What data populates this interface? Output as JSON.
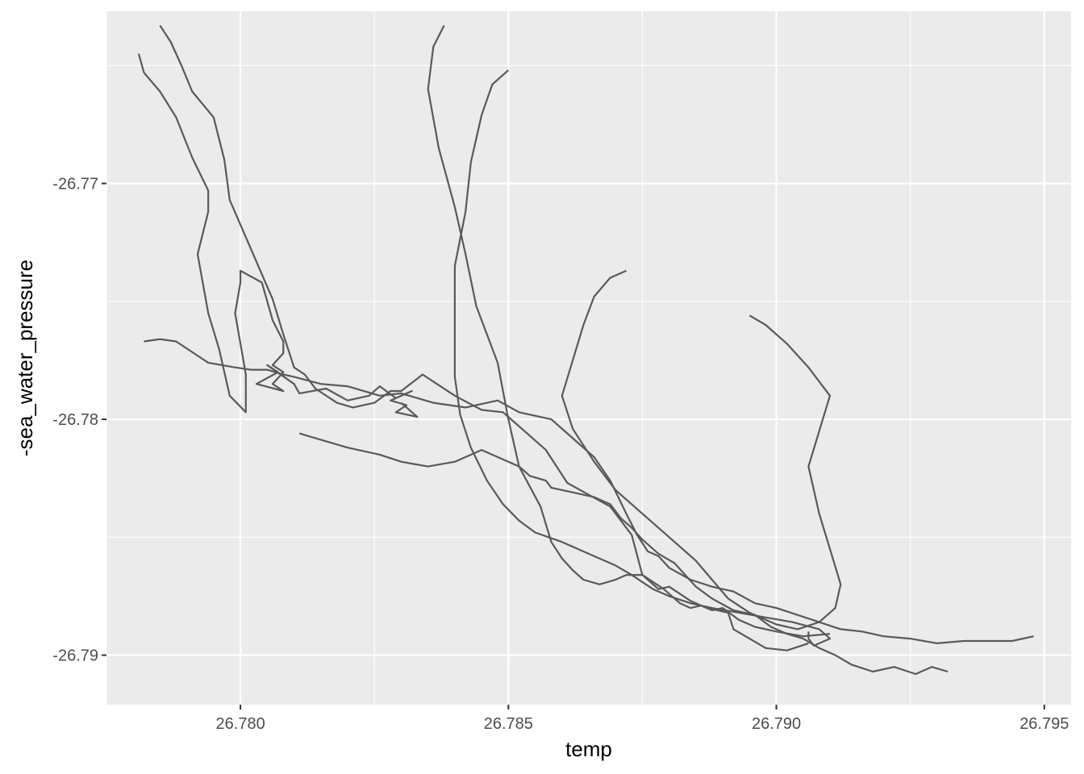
{
  "chart_data": {
    "type": "line",
    "title": "",
    "xlabel": "temp",
    "ylabel": "-sea_water_pressure",
    "xlim": [
      26.7775,
      26.7955
    ],
    "ylim": [
      -26.7921,
      -26.7627
    ],
    "x_ticks": [
      26.78,
      26.785,
      26.79,
      26.795
    ],
    "x_tick_labels": [
      "26.780",
      "26.785",
      "26.790",
      "26.795"
    ],
    "y_ticks": [
      -26.77,
      -26.78,
      -26.79
    ],
    "y_tick_labels": [
      "-26.77",
      "-26.78",
      "-26.79"
    ],
    "grid": true,
    "legend": "none",
    "colors": {
      "panel": "#ebebeb",
      "grid_major": "#ffffff",
      "line": "#595959",
      "tick_text": "#4d4d4d",
      "axis_title": "#000000"
    },
    "series": [
      {
        "x": [
          26.7781,
          26.7782,
          26.7785,
          26.7788,
          26.7791,
          26.7794,
          26.7794,
          26.7792,
          26.7794,
          26.7796,
          26.7798,
          26.7801,
          26.7801,
          26.7799,
          26.78,
          26.78,
          26.7804,
          26.7806,
          26.7808,
          26.7808,
          26.7806,
          26.7808,
          26.7806,
          26.7808,
          26.7803,
          26.7807,
          26.7805,
          26.781,
          26.7811,
          26.7816,
          26.782,
          26.7824,
          26.7826,
          26.7829,
          26.7832,
          26.7828,
          26.7831,
          26.7829,
          26.7833,
          26.783
        ],
        "y": [
          -26.7645,
          -26.7653,
          -26.7661,
          -26.7672,
          -26.7689,
          -26.7703,
          -26.7712,
          -26.773,
          -26.7755,
          -26.777,
          -26.779,
          -26.7797,
          -26.7781,
          -26.7755,
          -26.7742,
          -26.7737,
          -26.7742,
          -26.7758,
          -26.7767,
          -26.7772,
          -26.7777,
          -26.778,
          -26.7785,
          -26.7788,
          -26.7785,
          -26.778,
          -26.7777,
          -26.7785,
          -26.7789,
          -26.7787,
          -26.7792,
          -26.779,
          -26.7786,
          -26.7791,
          -26.7788,
          -26.7792,
          -26.7794,
          -26.7797,
          -26.7799,
          -26.7793
        ]
      },
      {
        "x": [
          26.7785,
          26.7787,
          26.7789,
          26.7791,
          26.7795,
          26.7797,
          26.7798,
          26.7802,
          26.7806,
          26.7808,
          26.781,
          26.7812,
          26.7814,
          26.7818,
          26.7821,
          26.7825,
          26.7828,
          26.783,
          26.7834,
          26.7836,
          26.784,
          26.7845,
          26.7849,
          26.7853,
          26.7857,
          26.7861,
          26.7865,
          26.7869,
          26.7873,
          26.7875,
          26.7878,
          26.788,
          26.7884,
          26.7887,
          26.7891,
          26.7892,
          26.7895,
          26.7898,
          26.7902,
          26.7906
        ],
        "y": [
          -26.7633,
          -26.764,
          -26.765,
          -26.7661,
          -26.7672,
          -26.769,
          -26.7707,
          -26.7728,
          -26.7749,
          -26.7764,
          -26.7778,
          -26.7781,
          -26.7787,
          -26.7793,
          -26.7795,
          -26.7793,
          -26.7788,
          -26.7788,
          -26.7781,
          -26.7784,
          -26.779,
          -26.7796,
          -26.7797,
          -26.7805,
          -26.7813,
          -26.7827,
          -26.7832,
          -26.7837,
          -26.7849,
          -26.7866,
          -26.7872,
          -26.7871,
          -26.7877,
          -26.788,
          -26.7882,
          -26.7889,
          -26.7893,
          -26.7897,
          -26.7898,
          -26.7895
        ]
      },
      {
        "x": [
          26.7782,
          26.7785,
          26.7788,
          26.7794,
          26.7799,
          26.7802,
          26.7805,
          26.7808,
          26.781,
          26.7815,
          26.782,
          26.7826,
          26.783,
          26.7836,
          26.7842,
          26.7848,
          26.7852,
          26.7858,
          26.7862,
          26.7866,
          26.7869,
          26.7872,
          26.7874,
          26.7876,
          26.7878,
          26.788,
          26.7884,
          26.7888,
          26.7892,
          26.7896,
          26.79,
          26.7904,
          26.7908,
          26.7912,
          26.7916,
          26.792,
          26.7925,
          26.793,
          26.7935,
          26.794,
          26.7944,
          26.7948
        ],
        "y": [
          -26.7767,
          -26.7766,
          -26.7767,
          -26.7776,
          -26.7778,
          -26.7779,
          -26.7779,
          -26.7781,
          -26.7782,
          -26.7785,
          -26.7786,
          -26.779,
          -26.7789,
          -26.7793,
          -26.7795,
          -26.7792,
          -26.7797,
          -26.78,
          -26.7808,
          -26.7816,
          -26.7826,
          -26.784,
          -26.7849,
          -26.7856,
          -26.7858,
          -26.7863,
          -26.7868,
          -26.7871,
          -26.7873,
          -26.7878,
          -26.788,
          -26.7883,
          -26.7886,
          -26.7889,
          -26.789,
          -26.7892,
          -26.7893,
          -26.7895,
          -26.7894,
          -26.7894,
          -26.7894,
          -26.7892
        ]
      },
      {
        "x": [
          26.7811,
          26.782,
          26.7826,
          26.783,
          26.7835,
          26.784,
          26.7845,
          26.7848,
          26.7852,
          26.7854,
          26.7857,
          26.7858,
          26.7862,
          26.7866,
          26.7869,
          26.7871,
          26.7873,
          26.7875,
          26.7878,
          26.7881,
          26.7883,
          26.7885,
          26.7888,
          26.7892,
          26.7896,
          26.7899,
          26.7902,
          26.7905,
          26.7908,
          26.7911,
          26.7914,
          26.7918,
          26.7922,
          26.7926,
          26.7929,
          26.7932
        ],
        "y": [
          -26.7806,
          -26.7812,
          -26.7815,
          -26.7818,
          -26.782,
          -26.7818,
          -26.7813,
          -26.7816,
          -26.782,
          -26.7824,
          -26.7826,
          -26.7829,
          -26.7831,
          -26.7833,
          -26.7836,
          -26.7842,
          -26.7846,
          -26.7851,
          -26.7857,
          -26.7861,
          -26.7866,
          -26.7871,
          -26.7876,
          -26.7881,
          -26.7883,
          -26.7888,
          -26.7891,
          -26.7893,
          -26.7897,
          -26.79,
          -26.7904,
          -26.7907,
          -26.7905,
          -26.7908,
          -26.7905,
          -26.7907
        ]
      },
      {
        "x": [
          26.7838,
          26.7836,
          26.7835,
          26.7837,
          26.784,
          26.7842,
          26.7844,
          26.7848,
          26.785,
          26.7852,
          26.7856,
          26.7858,
          26.786,
          26.7862,
          26.7864,
          26.7867,
          26.787,
          26.7872,
          26.7875,
          26.7879,
          26.7882,
          26.7884,
          26.7886,
          26.7888,
          26.789,
          26.7893,
          26.7896,
          26.79,
          26.7905,
          26.791
        ],
        "y": [
          -26.7633,
          -26.7642,
          -26.766,
          -26.7685,
          -26.771,
          -26.773,
          -26.7752,
          -26.7776,
          -26.78,
          -26.782,
          -26.7837,
          -26.7852,
          -26.7859,
          -26.7864,
          -26.7868,
          -26.787,
          -26.7868,
          -26.7866,
          -26.7866,
          -26.7872,
          -26.7878,
          -26.788,
          -26.7879,
          -26.7881,
          -26.788,
          -26.7885,
          -26.7888,
          -26.789,
          -26.7892,
          -26.7891
        ]
      },
      {
        "x": [
          26.785,
          26.7847,
          26.7845,
          26.7843,
          26.7842,
          26.784,
          26.784,
          26.784,
          26.7841,
          26.7843,
          26.7846,
          26.7849,
          26.7852,
          26.7855,
          26.786,
          26.7866,
          26.787,
          26.7873,
          26.7875,
          26.7877,
          26.788,
          26.7884,
          26.7888,
          26.7893,
          26.7898,
          26.7903,
          26.7908,
          26.791,
          26.7908,
          26.7907,
          26.7906,
          26.7906
        ],
        "y": [
          -26.7652,
          -26.7658,
          -26.7671,
          -26.7691,
          -26.7712,
          -26.7735,
          -26.776,
          -26.7782,
          -26.7798,
          -26.7812,
          -26.7826,
          -26.7836,
          -26.7843,
          -26.7848,
          -26.7852,
          -26.7858,
          -26.7862,
          -26.7866,
          -26.7869,
          -26.7872,
          -26.7875,
          -26.7878,
          -26.788,
          -26.7882,
          -26.7884,
          -26.7886,
          -26.7889,
          -26.7893,
          -26.7895,
          -26.7896,
          -26.7893,
          -26.789
        ]
      },
      {
        "x": [
          26.7872,
          26.7869,
          26.7866,
          26.7864,
          26.7862,
          26.786,
          26.7862,
          26.7866,
          26.787,
          26.7875,
          26.788,
          26.7885,
          26.7888,
          26.7891,
          26.7895,
          26.79,
          26.7904,
          26.7908,
          26.7911,
          26.7912,
          26.791,
          26.7908,
          26.7906,
          26.7908,
          26.791,
          26.7906,
          26.7902,
          26.7898,
          26.7895
        ],
        "y": [
          -26.7737,
          -26.774,
          -26.7748,
          -26.776,
          -26.7775,
          -26.779,
          -26.7804,
          -26.7818,
          -26.783,
          -26.784,
          -26.785,
          -26.786,
          -26.7868,
          -26.7876,
          -26.7882,
          -26.7887,
          -26.7889,
          -26.7886,
          -26.788,
          -26.787,
          -26.7855,
          -26.784,
          -26.782,
          -26.7805,
          -26.779,
          -26.7778,
          -26.7768,
          -26.776,
          -26.7756
        ]
      }
    ]
  }
}
